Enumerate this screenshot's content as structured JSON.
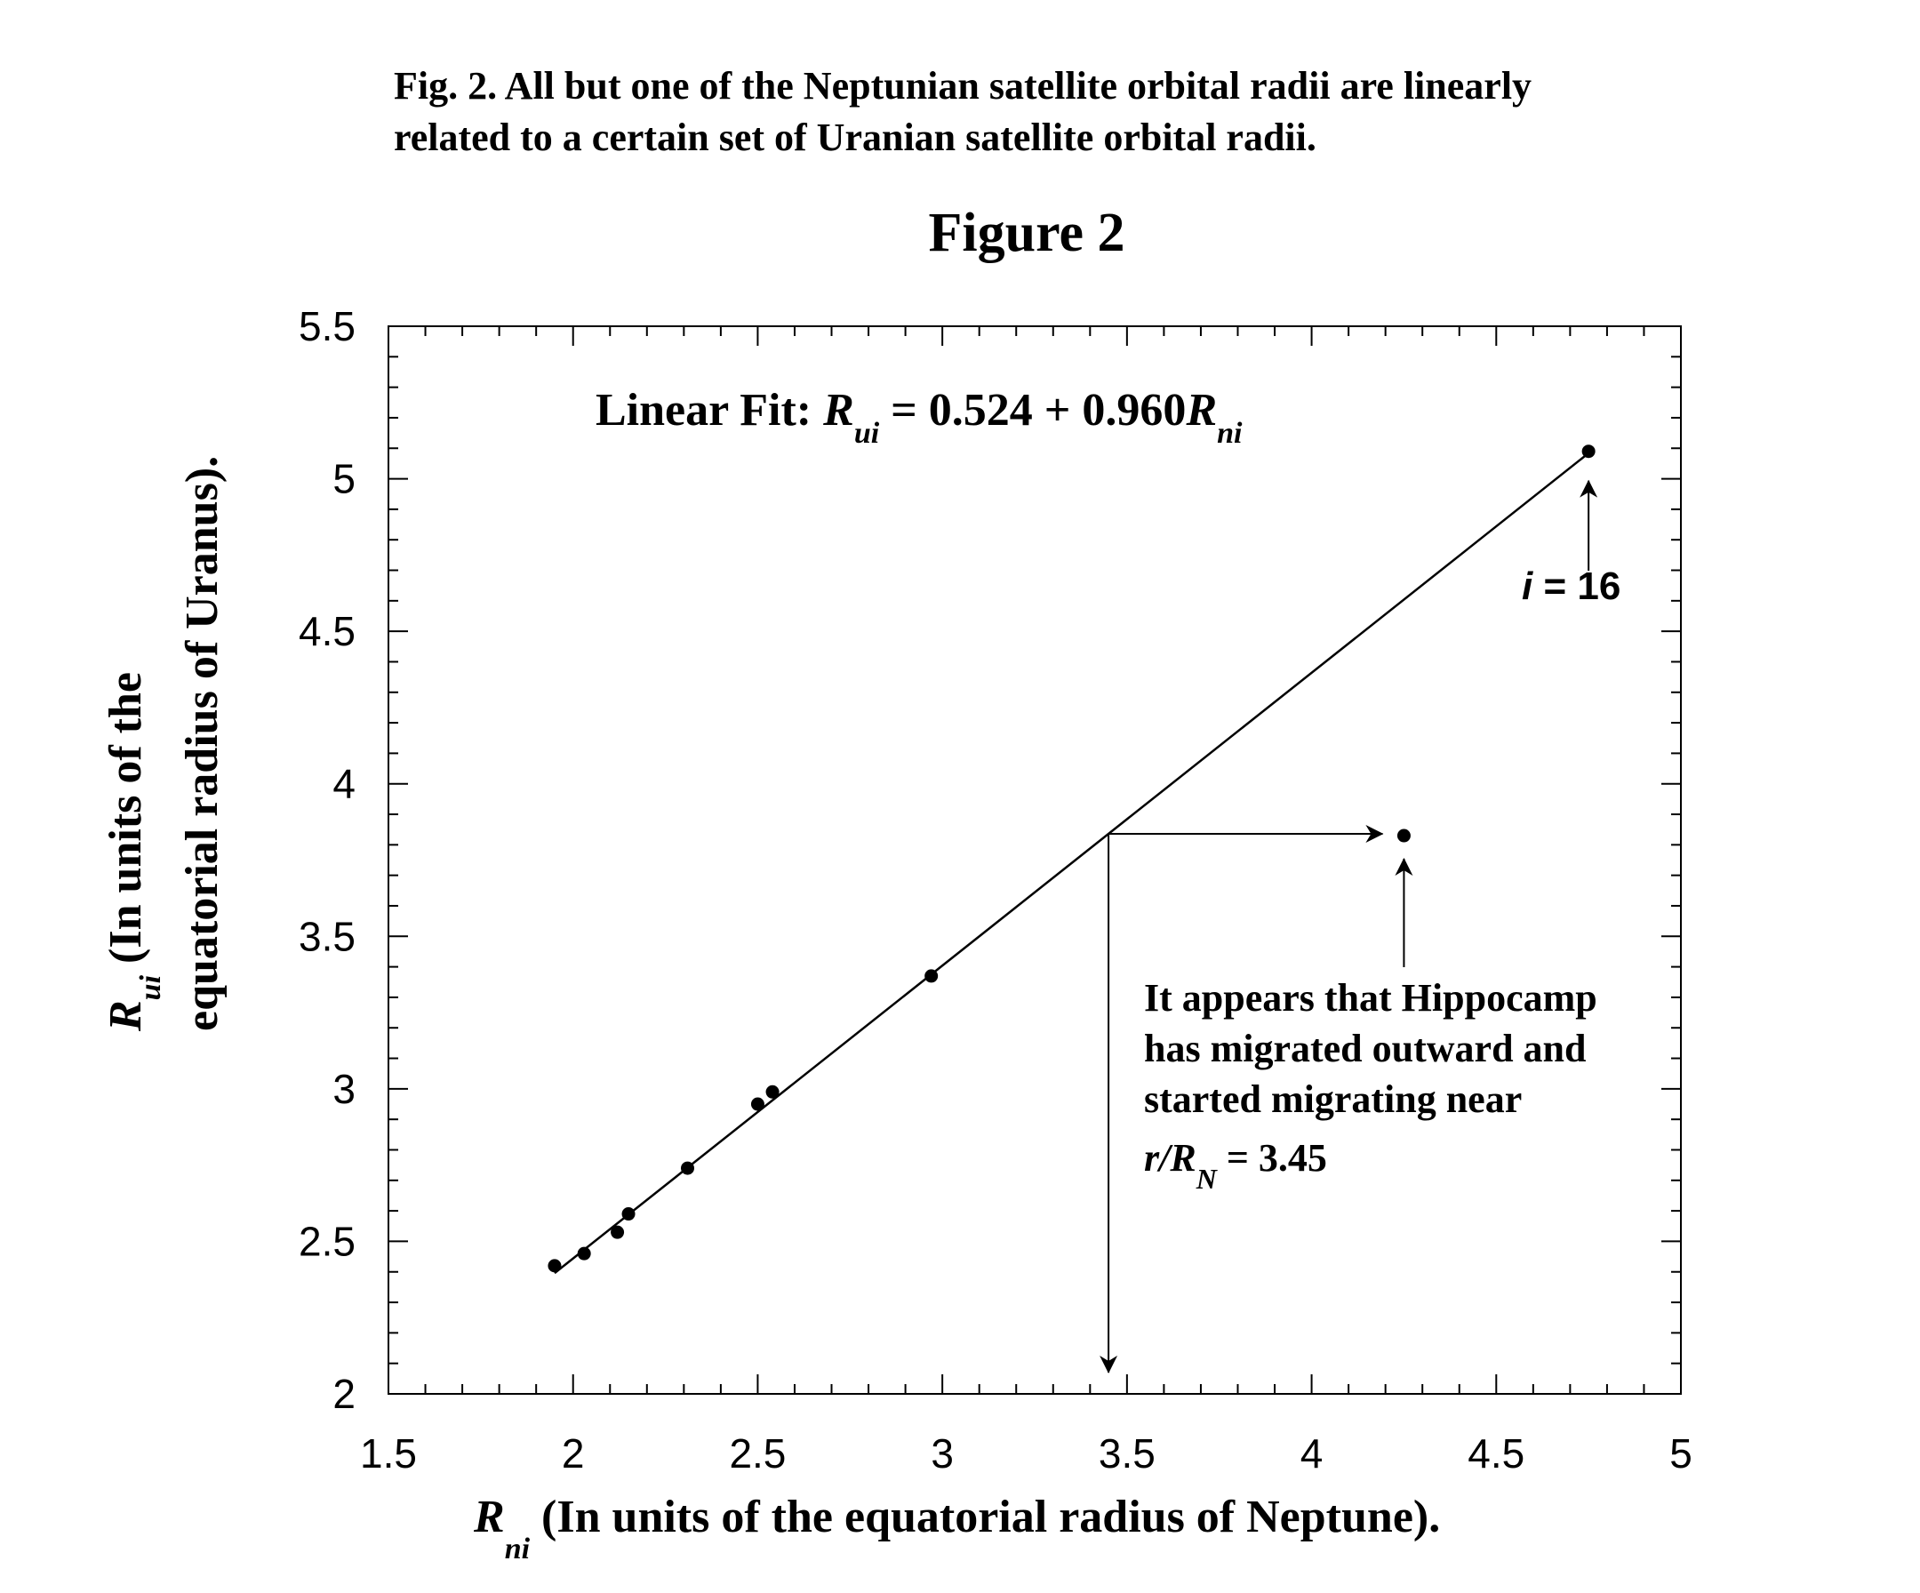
{
  "caption": {
    "line1": "Fig. 2. All but one of the Neptunian satellite orbital radii are linearly",
    "line2": "related to a certain set of Uranian satellite orbital radii."
  },
  "chart_data": {
    "type": "scatter",
    "title": "Figure 2",
    "xlabel": {
      "symbol": "R",
      "sub": "ni",
      "text": " (In units of the equatorial radius of Neptune)."
    },
    "ylabel": {
      "symbol": "R",
      "sub": "ui",
      "line1": " (In units of the",
      "line2": "equatorial radius of Uranus)."
    },
    "xlim": [
      1.5,
      5
    ],
    "ylim": [
      2,
      5.5
    ],
    "x_ticks": [
      "1.5",
      "2",
      "2.5",
      "3",
      "3.5",
      "4",
      "4.5",
      "5"
    ],
    "y_ticks": [
      "2",
      "2.5",
      "3",
      "3.5",
      "4",
      "4.5",
      "5",
      "5.5"
    ],
    "grid": false,
    "series": [
      {
        "points": [
          {
            "x": 1.95,
            "y": 2.42
          },
          {
            "x": 2.03,
            "y": 2.46
          },
          {
            "x": 2.12,
            "y": 2.53
          },
          {
            "x": 2.15,
            "y": 2.59
          },
          {
            "x": 2.31,
            "y": 2.74
          },
          {
            "x": 2.5,
            "y": 2.95
          },
          {
            "x": 2.54,
            "y": 2.99
          },
          {
            "x": 2.97,
            "y": 3.37
          },
          {
            "x": 4.25,
            "y": 3.83
          },
          {
            "x": 4.75,
            "y": 5.09
          }
        ]
      }
    ],
    "fit_line": {
      "intercept": 0.524,
      "slope": 0.96,
      "x_range": [
        1.95,
        4.75
      ],
      "label": {
        "prefix": "Linear Fit: ",
        "lhs": "R",
        "lhs_sub": "ui",
        "rhs": " = 0.524 + 0.960",
        "rhs_sym": "R",
        "rhs_sub": "ni"
      }
    },
    "annotations": {
      "top_point_label": {
        "italic": "i",
        "rest": " = 16"
      },
      "hippocamp_note": {
        "line1": "It appears that Hippocamp",
        "line2": "has migrated outward and",
        "line3": "started migrating near",
        "line4_sym": "r/R",
        "line4_sub": "N",
        "line4_rest": " = 3.45"
      },
      "migration_x": 3.45
    }
  }
}
